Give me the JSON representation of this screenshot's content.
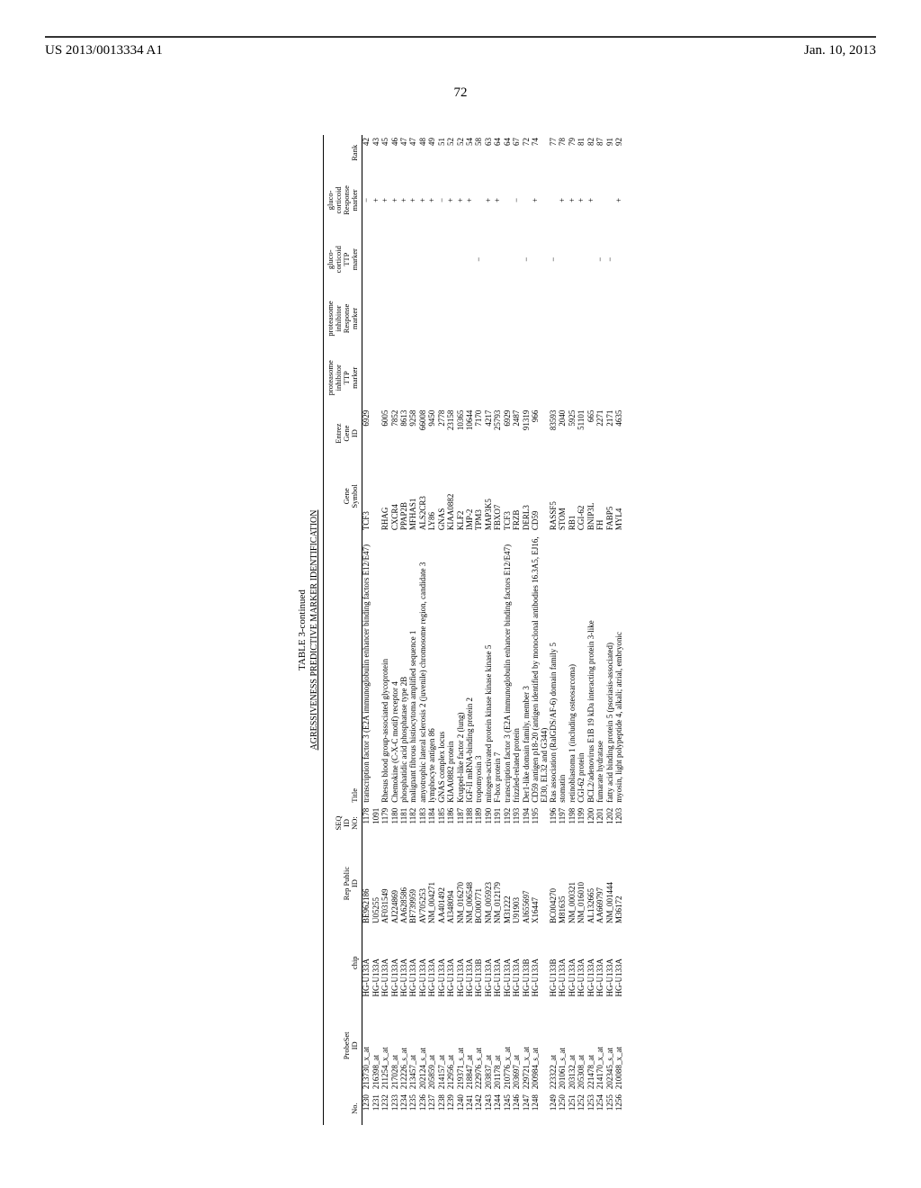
{
  "header": {
    "left": "US 2013/0013334 A1",
    "right": "Jan. 10, 2013",
    "page_number": "72"
  },
  "table": {
    "caption": "TABLE 3-continued",
    "subtitle": "AGRESSIVENESS PREDICTIVE MARKER IDENTIFICATION",
    "columns": [
      "No.",
      "ProbeSet ID",
      "chip",
      "Rep Public ID",
      "SEQ ID NO:",
      "Title",
      "Gene Symbol",
      "Entrez Gene ID",
      "proteasome inhibitor TTP marker",
      "proteasome inhibitor Response marker",
      "gluco-corticoid TTP marker",
      "gluco-corticoid Response marker",
      "Rank"
    ],
    "rows": [
      {
        "no": "1230",
        "probe": "213730_x_at",
        "chip": "HG-U133A",
        "rep": "BE962186",
        "seq": "1178",
        "title": "transcription factor 3 (E2A immunoglobulin enhancer binding factors E12/E47)",
        "gene": "TCF3",
        "entrez": "6929",
        "m1": "",
        "m2": "",
        "m3": "",
        "m4": "−",
        "rank": "42"
      },
      {
        "no": "1231",
        "probe": "216398_at",
        "chip": "HG-U133A",
        "rep": "U05255",
        "seq": "1091",
        "title": "",
        "gene": "",
        "entrez": "",
        "m1": "",
        "m2": "",
        "m3": "",
        "m4": "+",
        "rank": "43"
      },
      {
        "no": "1232",
        "probe": "211254_x_at",
        "chip": "HG-U133A",
        "rep": "AF031549",
        "seq": "1179",
        "title": "Rhesus blood group-associated glycoprotein",
        "gene": "RHAG",
        "entrez": "6005",
        "m1": "",
        "m2": "",
        "m3": "",
        "m4": "+",
        "rank": "45"
      },
      {
        "no": "1233",
        "probe": "217028_at",
        "chip": "HG-U133A",
        "rep": "AJ224869",
        "seq": "1180",
        "title": "Chemokine (C-X-C motif) receptor 4",
        "gene": "CXCR4",
        "entrez": "7852",
        "m1": "",
        "m2": "",
        "m3": "",
        "m4": "+",
        "rank": "46"
      },
      {
        "no": "1234",
        "probe": "212226_s_at",
        "chip": "HG-U133A",
        "rep": "AA628586",
        "seq": "1181",
        "title": "phosphatidic acid phosphatase type 2B",
        "gene": "PPAP2B",
        "entrez": "8613",
        "m1": "",
        "m2": "",
        "m3": "",
        "m4": "+",
        "rank": "47"
      },
      {
        "no": "1235",
        "probe": "213457_at",
        "chip": "HG-U133A",
        "rep": "BF739959",
        "seq": "1182",
        "title": "malignant fibrous histiocytoma amplified sequence 1",
        "gene": "MFHAS1",
        "entrez": "9258",
        "m1": "",
        "m2": "",
        "m3": "",
        "m4": "+",
        "rank": "47"
      },
      {
        "no": "1236",
        "probe": "202124_s_at",
        "chip": "HG-U133A",
        "rep": "AV705253",
        "seq": "1183",
        "title": "amyotrophic lateral sclerosis 2 (juvenile) chromosome region, candidate 3",
        "gene": "ALS2CR3",
        "entrez": "66008",
        "m1": "",
        "m2": "",
        "m3": "",
        "m4": "+",
        "rank": "48"
      },
      {
        "no": "1237",
        "probe": "205859_at",
        "chip": "HG-U133A",
        "rep": "NM_004271",
        "seq": "1184",
        "title": "lymphocyte antigen 86",
        "gene": "LY86",
        "entrez": "9450",
        "m1": "",
        "m2": "",
        "m3": "",
        "m4": "+",
        "rank": "49"
      },
      {
        "no": "1238",
        "probe": "214157_at",
        "chip": "HG-U133A",
        "rep": "AA401492",
        "seq": "1185",
        "title": "GNAS complex locus",
        "gene": "GNAS",
        "entrez": "2778",
        "m1": "",
        "m2": "",
        "m3": "",
        "m4": "−",
        "rank": "51"
      },
      {
        "no": "1239",
        "probe": "212956_at",
        "chip": "HG-U133A",
        "rep": "AI348094",
        "seq": "1186",
        "title": "KIAA0882 protein",
        "gene": "KIAA0882",
        "entrez": "23158",
        "m1": "",
        "m2": "",
        "m3": "",
        "m4": "+",
        "rank": "52"
      },
      {
        "no": "1240",
        "probe": "219371_s_at",
        "chip": "HG-U133A",
        "rep": "NM_016270",
        "seq": "1187",
        "title": "Kruppel-like factor 2 (lung)",
        "gene": "KLF2",
        "entrez": "10365",
        "m1": "",
        "m2": "",
        "m3": "",
        "m4": "+",
        "rank": "52"
      },
      {
        "no": "1241",
        "probe": "218847_at",
        "chip": "HG-U133A",
        "rep": "NM_006548",
        "seq": "1188",
        "title": "IGF-II mRNA-binding protein 2",
        "gene": "IMP-2",
        "entrez": "10644",
        "m1": "",
        "m2": "",
        "m3": "",
        "m4": "+",
        "rank": "54"
      },
      {
        "no": "1242",
        "probe": "222976_s_at",
        "chip": "HG-U133B",
        "rep": "BC000771",
        "seq": "1189",
        "title": "tropomyosin 3",
        "gene": "TPM3",
        "entrez": "7170",
        "m1": "",
        "m2": "",
        "m3": "−",
        "m4": "",
        "rank": "58"
      },
      {
        "no": "1243",
        "probe": "203837_at",
        "chip": "HG-U133A",
        "rep": "NM_005923",
        "seq": "1190",
        "title": "mitogen-activated protein kinase kinase kinase 5",
        "gene": "MAP3K5",
        "entrez": "4217",
        "m1": "",
        "m2": "",
        "m3": "",
        "m4": "+",
        "rank": "63"
      },
      {
        "no": "1244",
        "probe": "201178_at",
        "chip": "HG-U133A",
        "rep": "NM_012179",
        "seq": "1191",
        "title": "F-box protein 7",
        "gene": "FBXO7",
        "entrez": "25793",
        "m1": "",
        "m2": "",
        "m3": "",
        "m4": "+",
        "rank": "64"
      },
      {
        "no": "1245",
        "probe": "210776_x_at",
        "chip": "HG-U133A",
        "rep": "M31222",
        "seq": "1192",
        "title": "transcription factor 3 (E2A immunoglobulin enhancer binding factors E12/E47)",
        "gene": "TCF3",
        "entrez": "6929",
        "m1": "",
        "m2": "",
        "m3": "",
        "m4": "",
        "rank": "64"
      },
      {
        "no": "1246",
        "probe": "203697_at",
        "chip": "HG-U133A",
        "rep": "U91903",
        "seq": "1193",
        "title": "frizzled-related protein",
        "gene": "FRZB",
        "entrez": "2487",
        "m1": "",
        "m2": "",
        "m3": "",
        "m4": "−",
        "rank": "67"
      },
      {
        "no": "1247",
        "probe": "229721_x_at",
        "chip": "HG-U133B",
        "rep": "AI655697",
        "seq": "1194",
        "title": "Der1-like domain family, member 3",
        "gene": "DERL3",
        "entrez": "91319",
        "m1": "",
        "m2": "",
        "m3": "−",
        "m4": "",
        "rank": "72"
      },
      {
        "no": "1248",
        "probe": "200984_s_at",
        "chip": "HG-U133A",
        "rep": "X16447",
        "seq": "1195",
        "title": "CD59 antigen p18-20 (antigen identified by monoclonal antibodies 16.3A5, EJ16, EJ30, EL32 and G344)",
        "gene": "CD59",
        "entrez": "966",
        "m1": "",
        "m2": "",
        "m3": "",
        "m4": "+",
        "rank": "74"
      },
      {
        "no": "1249",
        "probe": "223322_at",
        "chip": "HG-U133B",
        "rep": "BC004270",
        "seq": "1196",
        "title": "Ras association (RalGDS/AF-6) domain family 5",
        "gene": "RASSF5",
        "entrez": "83593",
        "m1": "",
        "m2": "",
        "m3": "−",
        "m4": "",
        "rank": "77"
      },
      {
        "no": "1250",
        "probe": "201061_s_at",
        "chip": "HG-U133A",
        "rep": "M81635",
        "seq": "1197",
        "title": "stomatin",
        "gene": "STOM",
        "entrez": "2040",
        "m1": "",
        "m2": "",
        "m3": "",
        "m4": "+",
        "rank": "78"
      },
      {
        "no": "1251",
        "probe": "203132_at",
        "chip": "HG-U133A",
        "rep": "NM_000321",
        "seq": "1198",
        "title": "retinoblastoma 1 (including osteosarcoma)",
        "gene": "RB1",
        "entrez": "5925",
        "m1": "",
        "m2": "",
        "m3": "",
        "m4": "+",
        "rank": "79"
      },
      {
        "no": "1252",
        "probe": "205308_at",
        "chip": "HG-U133A",
        "rep": "NM_016010",
        "seq": "1199",
        "title": "CGI-62 protein",
        "gene": "CGI-62",
        "entrez": "51101",
        "m1": "",
        "m2": "",
        "m3": "",
        "m4": "+",
        "rank": "81"
      },
      {
        "no": "1253",
        "probe": "221478_at",
        "chip": "HG-U133A",
        "rep": "AL132665",
        "seq": "1200",
        "title": "BCL2/adenovirus E1B 19 kDa interacting protein 3-like",
        "gene": "BNIP3L",
        "entrez": "665",
        "m1": "",
        "m2": "",
        "m3": "",
        "m4": "+",
        "rank": "82"
      },
      {
        "no": "1254",
        "probe": "214170_x_at",
        "chip": "HG-U133A",
        "rep": "AA669797",
        "seq": "1201",
        "title": "fumarate hydratase",
        "gene": "FH",
        "entrez": "2271",
        "m1": "",
        "m2": "",
        "m3": "−",
        "m4": "",
        "rank": "87"
      },
      {
        "no": "1255",
        "probe": "202345_s_at",
        "chip": "HG-U133A",
        "rep": "NM_001444",
        "seq": "1202",
        "title": "fatty acid binding protein 5 (psoriasis-associated)",
        "gene": "FABP5",
        "entrez": "2171",
        "m1": "",
        "m2": "",
        "m3": "−",
        "m4": "",
        "rank": "91"
      },
      {
        "no": "1256",
        "probe": "210088_x_at",
        "chip": "HG-U133A",
        "rep": "M36172",
        "seq": "1203",
        "title": "myosin, light polypeptide 4, alkali; atrial, embryonic",
        "gene": "MYL4",
        "entrez": "4635",
        "m1": "",
        "m2": "",
        "m3": "",
        "m4": "+",
        "rank": "92"
      }
    ]
  }
}
